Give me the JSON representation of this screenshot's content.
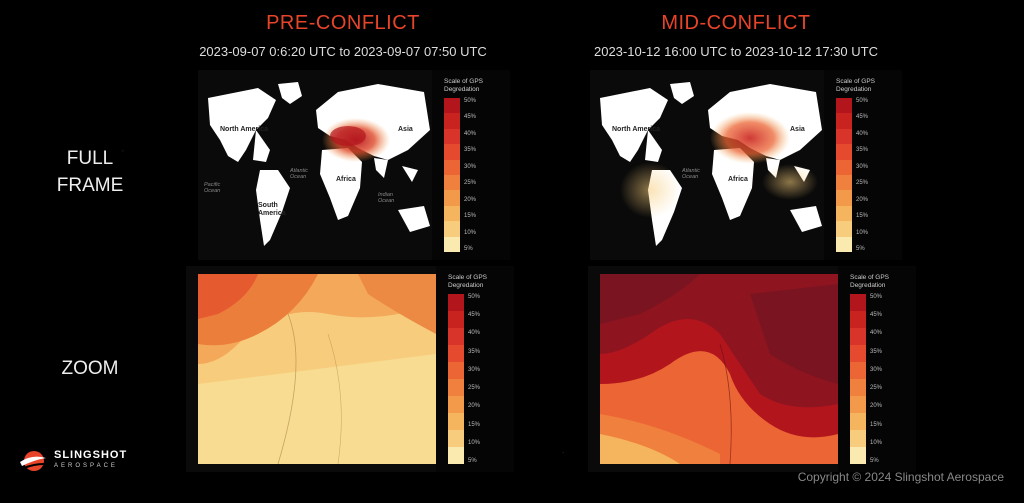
{
  "pre": {
    "title": "PRE-CONFLICT",
    "range": "2023-09-07 0:6:20 UTC to 2023-09-07 07:50 UTC"
  },
  "mid": {
    "title": "MID-CONFLICT",
    "range": "2023-10-12 16:00 UTC to 2023-10-12 17:30 UTC"
  },
  "rows": {
    "full_frame": "FULL FRAME",
    "zoom": "ZOOM"
  },
  "legend": {
    "title": "Scale of GPS Degredation",
    "ticks": [
      "50%",
      "45%",
      "40%",
      "35%",
      "30%",
      "25%",
      "20%",
      "15%",
      "10%",
      "5%"
    ],
    "colors": [
      "#b3151d",
      "#c9231f",
      "#d9342a",
      "#e54a2e",
      "#ec6534",
      "#f0803d",
      "#f39a4a",
      "#f5b45e",
      "#f7cd7d",
      "#faeab0"
    ]
  },
  "map_labels": {
    "north_america": "North America",
    "south_america": "South America",
    "africa": "Africa",
    "asia": "Asia",
    "pacific": "Pacific Ocean",
    "atlantic": "Atlantic Ocean",
    "indian": "Indian Ocean"
  },
  "logo": {
    "name": "SLINGSHOT",
    "sub": "AEROSPACE"
  },
  "copyright": "Copyright © 2024 Slingshot Aerospace"
}
